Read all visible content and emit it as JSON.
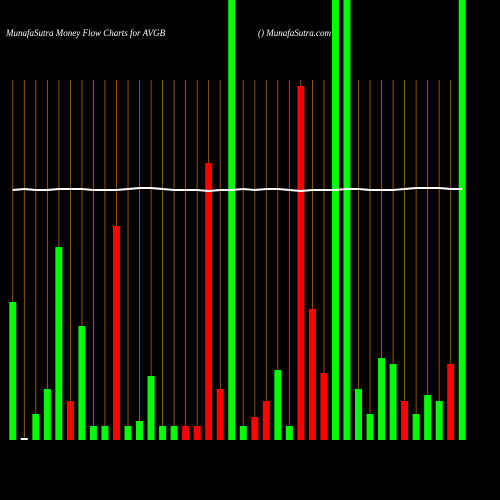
{
  "chart_data": {
    "type": "bar",
    "title": "MunafaSutra  Money Flow  Charts for AVGB",
    "subtitle": "() MunafaSutra.com",
    "values": [
      138,
      2,
      26,
      51,
      193,
      39,
      114,
      14,
      14,
      214,
      14,
      19,
      64,
      14,
      14,
      14,
      14,
      277,
      51,
      440,
      14,
      23,
      39,
      70,
      14,
      354,
      131,
      67,
      440,
      440,
      51,
      26,
      82,
      76,
      39,
      26,
      45,
      39,
      76,
      440
    ],
    "colors": [
      "#00ff00",
      "#ffffff",
      "#00ff00",
      "#00ff00",
      "#00ff00",
      "#ff0000",
      "#00ff00",
      "#00ff00",
      "#00ff00",
      "#ff0000",
      "#00ff00",
      "#00ff00",
      "#00ff00",
      "#00ff00",
      "#00ff00",
      "#ff0000",
      "#ff0000",
      "#ff0000",
      "#ff0000",
      "#00ff00",
      "#00ff00",
      "#ff0000",
      "#ff0000",
      "#00ff00",
      "#00ff00",
      "#ff0000",
      "#ff0000",
      "#ff0000",
      "#00ff00",
      "#00ff00",
      "#00ff00",
      "#00ff00",
      "#00ff00",
      "#00ff00",
      "#ff0000",
      "#00ff00",
      "#00ff00",
      "#00ff00",
      "#ff0000",
      "#00ff00"
    ],
    "line": {
      "color": "#ffffff",
      "values": [
        250,
        251,
        250,
        250,
        251,
        251,
        251,
        250,
        250,
        250,
        251,
        252,
        252,
        251,
        250,
        250,
        250,
        249,
        250,
        250,
        251,
        250,
        251,
        251,
        250,
        249,
        250,
        250,
        250,
        251,
        251,
        250,
        250,
        250,
        251,
        252,
        252,
        252,
        251,
        251
      ]
    },
    "ylim": [
      0,
      440
    ],
    "grid_color": "#b8650b",
    "background": "#000000"
  }
}
